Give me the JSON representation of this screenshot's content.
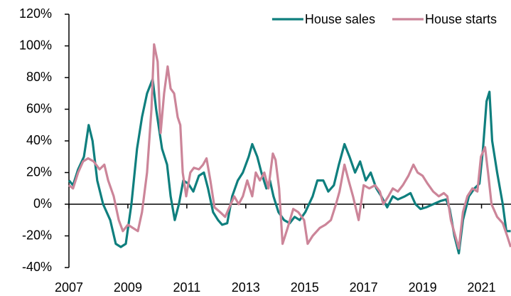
{
  "chart_data": {
    "type": "line",
    "legend": "upper right",
    "xlim": [
      2007,
      2022
    ],
    "xticks": [
      2007,
      2009,
      2011,
      2013,
      2015,
      2017,
      2019,
      2021
    ],
    "ylim": [
      -40,
      120
    ],
    "yticks": [
      {
        "value": -40,
        "label": "-40%"
      },
      {
        "value": -20,
        "label": "-20%"
      },
      {
        "value": 0,
        "label": "0%"
      },
      {
        "value": 20,
        "label": "20%"
      },
      {
        "value": 40,
        "label": "40%"
      },
      {
        "value": 60,
        "label": "60%"
      },
      {
        "value": 80,
        "label": "80%"
      },
      {
        "value": 100,
        "label": "100%"
      },
      {
        "value": 120,
        "label": "120%"
      }
    ],
    "series": [
      {
        "name": "House sales",
        "color": "#0f7f7e",
        "x": [
          2007.0,
          2007.14,
          2007.31,
          2007.51,
          2007.67,
          2007.8,
          2007.96,
          2008.16,
          2008.4,
          2008.59,
          2008.76,
          2008.93,
          2009.12,
          2009.31,
          2009.48,
          2009.65,
          2009.84,
          2009.96,
          2010.16,
          2010.33,
          2010.45,
          2010.59,
          2010.73,
          2010.88,
          2011.05,
          2011.22,
          2011.41,
          2011.58,
          2011.72,
          2011.89,
          2012.06,
          2012.2,
          2012.37,
          2012.54,
          2012.73,
          2012.9,
          2013.1,
          2013.22,
          2013.39,
          2013.53,
          2013.7,
          2013.82,
          2013.94,
          2014.11,
          2014.3,
          2014.49,
          2014.66,
          2014.83,
          2015.02,
          2015.27,
          2015.43,
          2015.63,
          2015.8,
          2015.99,
          2016.16,
          2016.35,
          2016.52,
          2016.71,
          2016.88,
          2017.07,
          2017.24,
          2017.43,
          2017.6,
          2017.8,
          2017.99,
          2018.16,
          2018.4,
          2018.59,
          2018.76,
          2018.93,
          2019.12,
          2019.36,
          2019.6,
          2019.8,
          2019.92,
          2020.08,
          2020.23,
          2020.37,
          2020.57,
          2020.76,
          2020.93,
          2021.05,
          2021.17,
          2021.27,
          2021.36,
          2021.53,
          2021.72,
          2021.84,
          2021.99
        ],
        "values": [
          15,
          12,
          22,
          30,
          50,
          40,
          15,
          0,
          -10,
          -25,
          -27,
          -25,
          0,
          35,
          55,
          70,
          79,
          60,
          35,
          25,
          5,
          -10,
          0,
          15,
          13,
          8,
          18,
          20,
          10,
          -5,
          -10,
          -13,
          -12,
          5,
          15,
          20,
          30,
          38,
          30,
          20,
          10,
          15,
          5,
          -5,
          -10,
          -12,
          -8,
          -10,
          -5,
          5,
          15,
          15,
          8,
          12,
          25,
          38,
          30,
          20,
          27,
          15,
          20,
          10,
          5,
          -2,
          5,
          3,
          5,
          7,
          0,
          -3,
          -2,
          0,
          2,
          3,
          -3,
          -20,
          -31,
          -10,
          5,
          10,
          13,
          35,
          65,
          71,
          40,
          20,
          0,
          -17,
          -17
        ]
      },
      {
        "name": "House starts",
        "color": "#cc8599",
        "x": [
          2007.0,
          2007.14,
          2007.31,
          2007.48,
          2007.65,
          2007.84,
          2008.04,
          2008.2,
          2008.33,
          2008.52,
          2008.69,
          2008.83,
          2009.0,
          2009.17,
          2009.34,
          2009.48,
          2009.65,
          2009.8,
          2009.89,
          2010.01,
          2010.11,
          2010.23,
          2010.35,
          2010.45,
          2010.57,
          2010.69,
          2010.78,
          2010.86,
          2010.98,
          2011.12,
          2011.24,
          2011.41,
          2011.55,
          2011.67,
          2011.8,
          2011.94,
          2012.13,
          2012.3,
          2012.42,
          2012.61,
          2012.76,
          2012.9,
          2013.05,
          2013.22,
          2013.34,
          2013.48,
          2013.63,
          2013.77,
          2013.92,
          2014.01,
          2014.13,
          2014.25,
          2014.42,
          2014.61,
          2014.78,
          2014.98,
          2015.1,
          2015.27,
          2015.51,
          2015.7,
          2015.89,
          2016.06,
          2016.18,
          2016.35,
          2016.49,
          2016.64,
          2016.83,
          2017.0,
          2017.19,
          2017.39,
          2017.55,
          2017.67,
          2017.84,
          2017.99,
          2018.16,
          2018.33,
          2018.52,
          2018.69,
          2018.83,
          2019.0,
          2019.17,
          2019.36,
          2019.55,
          2019.72,
          2019.84,
          2019.96,
          2020.11,
          2020.23,
          2020.37,
          2020.52,
          2020.69,
          2020.86,
          2020.98,
          2021.12,
          2021.22,
          2021.34,
          2021.53,
          2021.72,
          2021.87,
          2021.99
        ],
        "values": [
          12,
          10,
          20,
          27,
          29,
          27,
          22,
          25,
          15,
          5,
          -10,
          -17,
          -13,
          -15,
          -17,
          -5,
          20,
          60,
          101,
          90,
          45,
          70,
          87,
          73,
          70,
          55,
          50,
          20,
          5,
          20,
          23,
          22,
          25,
          29,
          15,
          -2,
          -5,
          -8,
          -3,
          5,
          0,
          5,
          15,
          5,
          20,
          15,
          20,
          10,
          32,
          28,
          10,
          -25,
          -15,
          -3,
          -5,
          -10,
          -25,
          -20,
          -15,
          -13,
          -10,
          0,
          8,
          25,
          15,
          5,
          -10,
          12,
          10,
          12,
          8,
          0,
          5,
          10,
          8,
          12,
          18,
          25,
          20,
          18,
          13,
          8,
          5,
          7,
          5,
          -10,
          -20,
          -28,
          -5,
          5,
          10,
          8,
          30,
          36,
          20,
          0,
          -8,
          -12,
          -20,
          -27
        ]
      }
    ]
  }
}
